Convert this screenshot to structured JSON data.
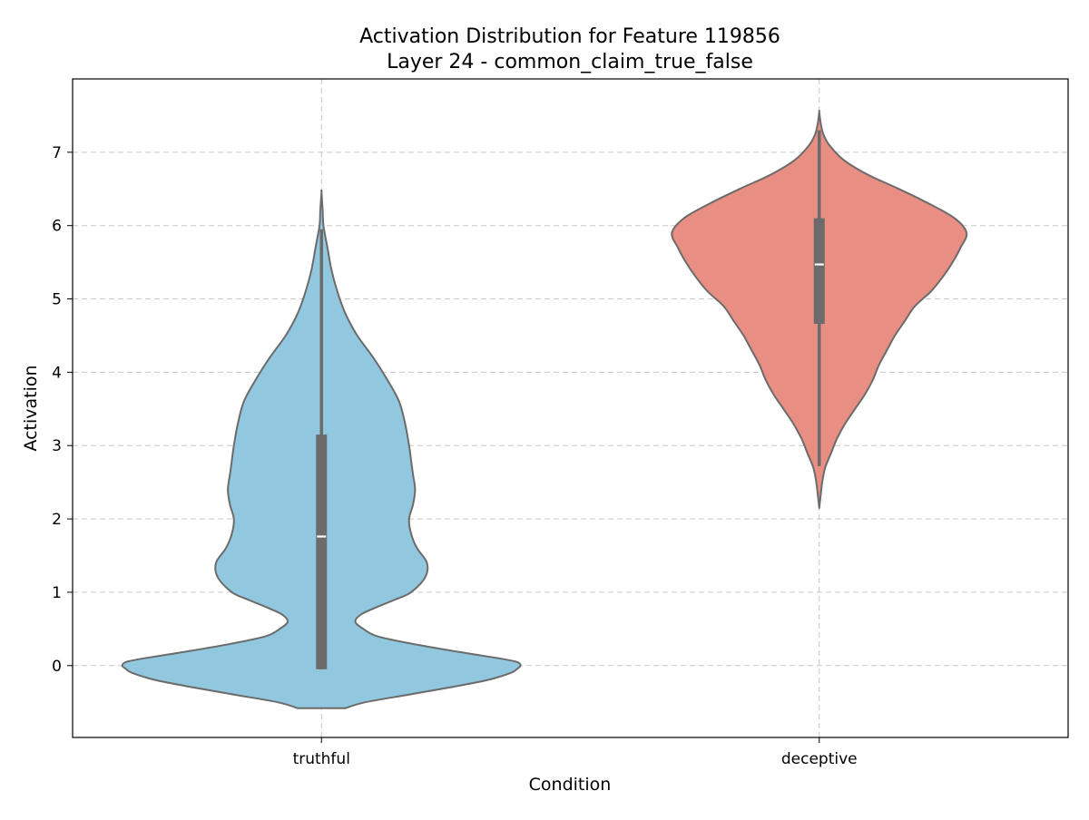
{
  "chart_data": {
    "type": "violin",
    "title": "Activation Distribution for Feature 119856",
    "subtitle": "Layer 24 - common_claim_true_false",
    "xlabel": "Condition",
    "ylabel": "Activation",
    "ylim": [
      -0.98,
      8.0
    ],
    "yticks": [
      0,
      1,
      2,
      3,
      4,
      5,
      6,
      7
    ],
    "grid": true,
    "categories": [
      "truthful",
      "deceptive"
    ],
    "series": [
      {
        "category": "truthful",
        "color": "#92c8df",
        "range": [
          -0.58,
          6.45
        ],
        "quartiles": [
          -0.05,
          1.76,
          3.15
        ],
        "whiskers": [
          -0.05,
          5.95
        ],
        "density": [
          [
            -0.58,
            0.12
          ],
          [
            -0.5,
            0.22
          ],
          [
            -0.4,
            0.43
          ],
          [
            -0.3,
            0.64
          ],
          [
            -0.2,
            0.83
          ],
          [
            -0.1,
            0.95
          ],
          [
            -0.05,
            0.98
          ],
          [
            0.0,
            1.0
          ],
          [
            0.05,
            0.98
          ],
          [
            0.1,
            0.89
          ],
          [
            0.2,
            0.66
          ],
          [
            0.3,
            0.45
          ],
          [
            0.4,
            0.28
          ],
          [
            0.5,
            0.21
          ],
          [
            0.6,
            0.17
          ],
          [
            0.7,
            0.2
          ],
          [
            0.8,
            0.28
          ],
          [
            0.9,
            0.37
          ],
          [
            1.0,
            0.45
          ],
          [
            1.2,
            0.52
          ],
          [
            1.4,
            0.53
          ],
          [
            1.6,
            0.48
          ],
          [
            1.8,
            0.45
          ],
          [
            2.0,
            0.44
          ],
          [
            2.2,
            0.46
          ],
          [
            2.4,
            0.47
          ],
          [
            2.6,
            0.46
          ],
          [
            2.8,
            0.45
          ],
          [
            3.0,
            0.44
          ],
          [
            3.3,
            0.42
          ],
          [
            3.6,
            0.39
          ],
          [
            3.9,
            0.33
          ],
          [
            4.2,
            0.26
          ],
          [
            4.5,
            0.18
          ],
          [
            4.8,
            0.12
          ],
          [
            5.1,
            0.08
          ],
          [
            5.4,
            0.05
          ],
          [
            5.7,
            0.03
          ],
          [
            6.0,
            0.01
          ],
          [
            6.2,
            0.006
          ],
          [
            6.45,
            0.0
          ]
        ]
      },
      {
        "category": "deceptive",
        "color": "#e98e83",
        "range": [
          2.15,
          7.55
        ],
        "quartiles": [
          4.66,
          5.47,
          6.1
        ],
        "whiskers": [
          2.72,
          7.3
        ],
        "density": [
          [
            2.15,
            0.0
          ],
          [
            2.3,
            0.006
          ],
          [
            2.5,
            0.015
          ],
          [
            2.7,
            0.03
          ],
          [
            2.9,
            0.06
          ],
          [
            3.1,
            0.09
          ],
          [
            3.3,
            0.13
          ],
          [
            3.5,
            0.18
          ],
          [
            3.7,
            0.23
          ],
          [
            3.9,
            0.27
          ],
          [
            4.1,
            0.3
          ],
          [
            4.3,
            0.34
          ],
          [
            4.5,
            0.38
          ],
          [
            4.7,
            0.43
          ],
          [
            4.9,
            0.48
          ],
          [
            5.1,
            0.56
          ],
          [
            5.3,
            0.62
          ],
          [
            5.5,
            0.67
          ],
          [
            5.7,
            0.71
          ],
          [
            5.9,
            0.74
          ],
          [
            6.1,
            0.68
          ],
          [
            6.3,
            0.55
          ],
          [
            6.5,
            0.4
          ],
          [
            6.7,
            0.24
          ],
          [
            6.9,
            0.12
          ],
          [
            7.1,
            0.05
          ],
          [
            7.25,
            0.02
          ],
          [
            7.4,
            0.007
          ],
          [
            7.55,
            0.0
          ]
        ]
      }
    ]
  }
}
